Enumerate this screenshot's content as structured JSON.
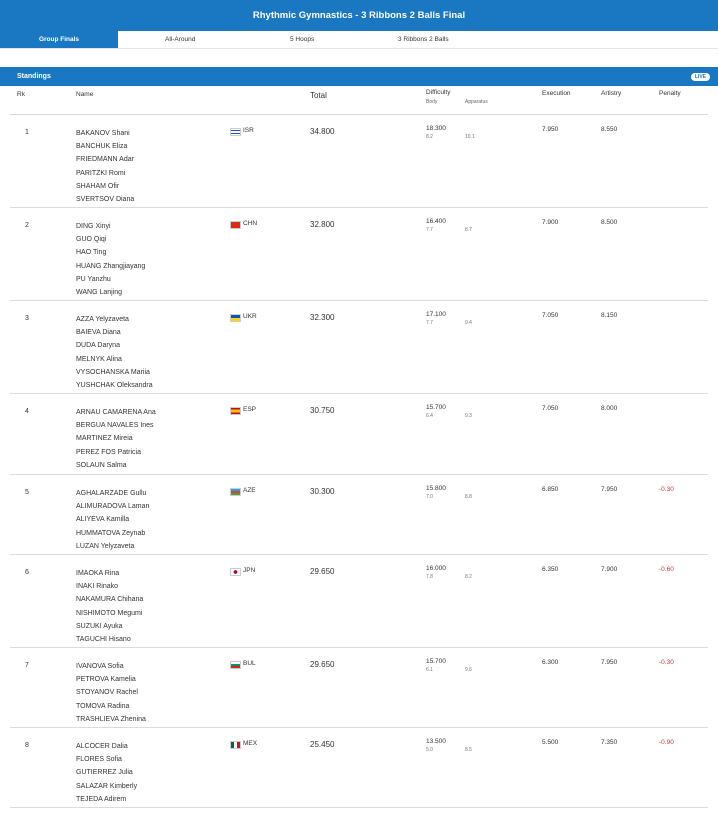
{
  "title": "Rhythmic Gymnastics - 3 Ribbons 2 Balls Final",
  "tabs": [
    "Group Finals",
    "All-Around",
    "5 Hoops",
    "3 Ribbons 2 Balls"
  ],
  "standings": {
    "label": "Standings",
    "badge": "LIVE"
  },
  "columns": {
    "rk": "Rk",
    "name": "Name",
    "total": "Total",
    "difficulty": "Difficulty",
    "body": "Body",
    "apparatus": "Apparatus",
    "execution": "Execution",
    "artistry": "Artistry",
    "penalty": "Penalty"
  },
  "rows": [
    {
      "rk": "1",
      "names": [
        "BAKANOV Shani",
        "BANCHUK Eliza",
        "FRIEDMANN Adar",
        "PARITZKI Romi",
        "SHAHAM Ofir",
        "SVERTSOV Diana"
      ],
      "noc": "ISR",
      "flag": "flag-israel-icon",
      "total": "34.800",
      "difficulty": "18.300",
      "body": "8.2",
      "apparatus": "10.1",
      "execution": "7.950",
      "artistry": "8.550",
      "penalty": ""
    },
    {
      "rk": "2",
      "names": [
        "DING Xinyi",
        "GUO Qiqi",
        "HAO Ting",
        "HUANG Zhangjiayang",
        "PU Yanzhu",
        "WANG Lanjing"
      ],
      "noc": "CHN",
      "flag": "flag-china-icon",
      "total": "32.800",
      "difficulty": "16.400",
      "body": "7.7",
      "apparatus": "8.7",
      "execution": "7.900",
      "artistry": "8.500",
      "penalty": ""
    },
    {
      "rk": "3",
      "names": [
        "AZZA Yelyzaveta",
        "BAIEVA Diana",
        "DUDA Daryna",
        "MELNYK Alina",
        "VYSOCHANSKA Mariia",
        "YUSHCHAK Oleksandra"
      ],
      "noc": "UKR",
      "flag": "flag-ukraine-icon",
      "total": "32.300",
      "difficulty": "17.100",
      "body": "7.7",
      "apparatus": "9.4",
      "execution": "7.050",
      "artistry": "8.150",
      "penalty": ""
    },
    {
      "rk": "4",
      "names": [
        "ARNAU CAMARENA Ana",
        "BERGUA NAVALES Ines",
        "MARTINEZ Mireia",
        "PEREZ FOS Patricia",
        "SOLAUN Salma"
      ],
      "noc": "ESP",
      "flag": "flag-spain-icon",
      "total": "30.750",
      "difficulty": "15.700",
      "body": "6.4",
      "apparatus": "9.3",
      "execution": "7.050",
      "artistry": "8.000",
      "penalty": ""
    },
    {
      "rk": "5",
      "names": [
        "AGHALARZADE Gullu",
        "ALIMURADOVA Laman",
        "ALIYEVA Kamilla",
        "HUMMATOVA Zeynab",
        "LUZAN Yelyzaveta"
      ],
      "noc": "AZE",
      "flag": "flag-azerbaijan-icon",
      "total": "30.300",
      "difficulty": "15.800",
      "body": "7.0",
      "apparatus": "8.8",
      "execution": "6.850",
      "artistry": "7.950",
      "penalty": "-0.30"
    },
    {
      "rk": "6",
      "names": [
        "IMAOKA Rina",
        "INAKI Rinako",
        "NAKAMURA Chihana",
        "NISHIMOTO Megumi",
        "SUZUKI Ayuka",
        "TAGUCHI Hisano"
      ],
      "noc": "JPN",
      "flag": "flag-japan-icon",
      "total": "29.650",
      "difficulty": "16.000",
      "body": "7.8",
      "apparatus": "8.2",
      "execution": "6.350",
      "artistry": "7.900",
      "penalty": "-0.60"
    },
    {
      "rk": "7",
      "names": [
        "IVANOVA Sofia",
        "PETROVA Kamelia",
        "STOYANOV Rachel",
        "TOMOVA Radina",
        "TRASHLIEVA Zhenina"
      ],
      "noc": "BUL",
      "flag": "flag-bulgaria-icon",
      "total": "29.650",
      "difficulty": "15.700",
      "body": "6.1",
      "apparatus": "9.6",
      "execution": "6.300",
      "artistry": "7.950",
      "penalty": "-0.30"
    },
    {
      "rk": "8",
      "names": [
        "ALCOCER Dalia",
        "FLORES Sofia",
        "GUTIERREZ Julia",
        "SALAZAR Kimberly",
        "TEJEDA Adirem"
      ],
      "noc": "MEX",
      "flag": "flag-mexico-icon",
      "total": "25.450",
      "difficulty": "13.500",
      "body": "5.0",
      "apparatus": "8.5",
      "execution": "5.500",
      "artistry": "7.350",
      "penalty": "-0.90"
    }
  ]
}
